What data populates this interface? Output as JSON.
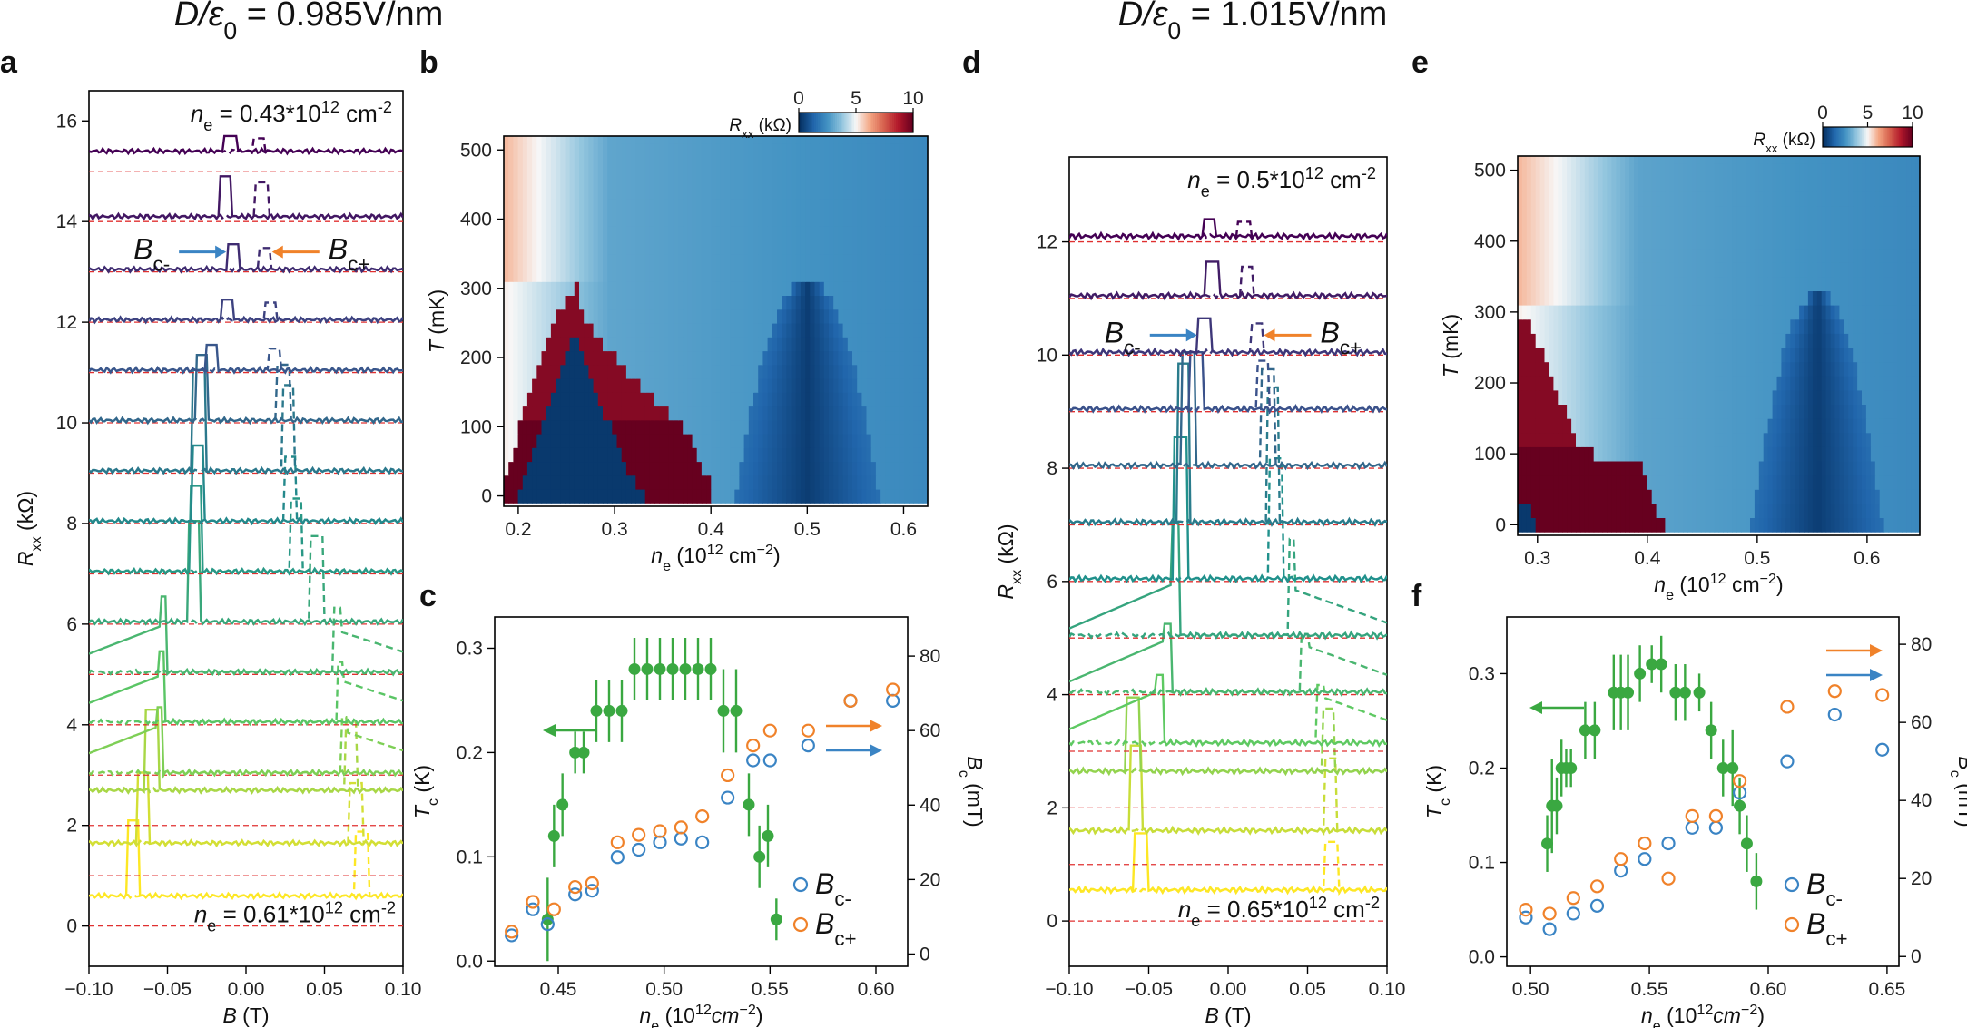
{
  "headings": {
    "left": {
      "prefix": "D/ε",
      "sub": "0",
      "value": " = 0.985V/nm"
    },
    "right": {
      "prefix": "D/ε",
      "sub": "0",
      "value": " = 1.015V/nm"
    }
  },
  "colors": {
    "blue": "#3a84c4",
    "orange": "#f0822a",
    "green": "#3aa841",
    "red_dash": "#e03030",
    "cmap": [
      "#053061",
      "#2166ac",
      "#4393c3",
      "#92c5de",
      "#f7f7f7",
      "#f4a582",
      "#d6604d",
      "#b2182b",
      "#67001f"
    ],
    "viridis": [
      "#440154",
      "#3b528b",
      "#21918c",
      "#5ec962",
      "#fde725"
    ]
  },
  "chart_data": [
    {
      "panel": "a",
      "type": "line",
      "xlabel": "B (T)",
      "ylabel_main": "R",
      "ylabel_sub": "xx",
      "ylabel_unit": " (kΩ)",
      "xlim": [
        -0.1,
        0.1
      ],
      "ylim": [
        -0.8,
        16.6
      ],
      "xticks": [
        -0.1,
        -0.05,
        0.0,
        0.05,
        0.1
      ],
      "xticklabels": [
        "−0.10",
        "−0.05",
        "0.00",
        "0.05",
        "0.10"
      ],
      "yticks": [
        0,
        2,
        4,
        6,
        8,
        10,
        12,
        14,
        16
      ],
      "offsets": [
        0,
        1,
        2,
        3,
        4,
        5,
        6,
        7,
        8,
        9,
        10,
        11,
        12,
        13,
        14,
        15
      ],
      "baseline_rel": [
        0.6,
        0.65,
        0.7,
        0.05,
        0.06,
        0.05,
        0.05,
        0.05,
        0.05,
        0.05,
        0.05,
        0.05,
        0.05,
        0.05,
        0.1,
        0.4
      ],
      "bc_minus": [
        -0.072,
        -0.066,
        -0.06,
        -0.057,
        -0.056,
        -0.055,
        -0.033,
        -0.032,
        -0.031,
        -0.03,
        -0.028,
        -0.022,
        -0.012,
        -0.008,
        -0.013,
        -0.01
      ],
      "bc_plus": [
        0.074,
        0.07,
        0.067,
        0.064,
        0.062,
        0.06,
        0.045,
        0.032,
        0.028,
        0.027,
        0.024,
        0.018,
        0.016,
        0.012,
        0.01,
        0.008
      ],
      "peak_height": [
        1.5,
        1.4,
        1.6,
        1.3,
        1.4,
        1.5,
        2.0,
        1.7,
        1.5,
        2.0,
        1.3,
        0.5,
        0.4,
        0.5,
        0.8,
        0.3
      ],
      "top_label": {
        "prefix": "n",
        "sub": "e",
        "value": " = 0.43*10",
        "sup": "12",
        "unit": " cm",
        "unit_sup": "-2"
      },
      "bottom_label": {
        "prefix": "n",
        "sub": "e",
        "value": " = 0.61*10",
        "sup": "12",
        "unit": " cm",
        "unit_sup": "-2"
      },
      "arrow_labels": {
        "minus": "B",
        "minus_sub": "c-",
        "plus": "B",
        "plus_sub": "c+"
      }
    },
    {
      "panel": "b",
      "type": "heatmap",
      "xlabel_main": "n",
      "xlabel_sub": "e",
      "xlabel_unit": " (10",
      "xlabel_sup": "12",
      "xlabel_unit2": " cm",
      "xlabel_sup2": "−2",
      "xlabel_end": ")",
      "ylabel": "T (mK)",
      "xlim": [
        0.185,
        0.625
      ],
      "ylim": [
        -15,
        520
      ],
      "xticks": [
        0.2,
        0.3,
        0.4,
        0.5,
        0.6
      ],
      "xticklabels": [
        "0.2",
        "0.3",
        "0.4",
        "0.5",
        "0.6"
      ],
      "yticks": [
        0,
        100,
        200,
        300,
        400,
        500
      ],
      "colorbar": {
        "label_main": "R",
        "label_sub": "xx",
        "label_unit": " (kΩ)",
        "ticks": [
          0,
          5,
          10
        ],
        "range": [
          0,
          10
        ]
      },
      "rows_T": [
        0,
        20,
        40,
        60,
        80,
        100,
        120,
        140,
        160,
        180,
        200,
        220,
        240,
        260,
        280,
        300,
        320,
        340,
        360,
        380,
        400,
        420,
        440,
        460,
        480,
        500,
        520
      ],
      "dome1_edges": [
        [
          0.185,
          0.4
        ],
        [
          0.185,
          0.4
        ],
        [
          0.19,
          0.39
        ],
        [
          0.195,
          0.385
        ],
        [
          0.2,
          0.38
        ],
        [
          0.2,
          0.37
        ],
        [
          0.205,
          0.355
        ],
        [
          0.21,
          0.34
        ],
        [
          0.215,
          0.325
        ],
        [
          0.22,
          0.31
        ],
        [
          0.225,
          0.3
        ],
        [
          0.23,
          0.29
        ],
        [
          0.235,
          0.28
        ],
        [
          0.24,
          0.27
        ],
        [
          0.25,
          0.265
        ],
        [
          0.26,
          0.262
        ]
      ],
      "sc_edges": [
        [
          0.2,
          0.33
        ],
        [
          0.205,
          0.32
        ],
        [
          0.21,
          0.31
        ],
        [
          0.215,
          0.305
        ],
        [
          0.22,
          0.3
        ],
        [
          0.225,
          0.295
        ],
        [
          0.23,
          0.29
        ],
        [
          0.235,
          0.285
        ],
        [
          0.24,
          0.28
        ],
        [
          0.245,
          0.275
        ],
        [
          0.25,
          0.27
        ],
        [
          0.255,
          0.265
        ]
      ],
      "dome2_center": 0.5,
      "dome2_halfwidth0": 0.075,
      "dome2_top": 320
    },
    {
      "panel": "c",
      "type": "scatter",
      "xlabel_main": "n",
      "xlabel_sub": "e",
      "xlabel_unit": " (10",
      "xlabel_sup": "12",
      "xlabel_unit2": "cm",
      "xlabel_sup2": "−2",
      "xlabel_end": ")",
      "ylabel_main": "T",
      "ylabel_sub": "c",
      "ylabel_unit": " (K)",
      "y2label_main": "B",
      "y2label_sub": "c",
      "y2label_unit": " (mT)",
      "xlim": [
        0.42,
        0.615
      ],
      "ylim": [
        -0.005,
        0.33
      ],
      "y2lim": [
        -3.3,
        90.5
      ],
      "xticks": [
        0.45,
        0.5,
        0.55,
        0.6
      ],
      "xticklabels": [
        "0.45",
        "0.50",
        "0.55",
        "0.60"
      ],
      "yticks": [
        0.0,
        0.1,
        0.2,
        0.3
      ],
      "yticklabels": [
        "0.0",
        "0.1",
        "0.2",
        "0.3"
      ],
      "y2ticks": [
        0,
        20,
        40,
        60,
        80
      ],
      "tc": {
        "name": "Tc",
        "x": [
          0.445,
          0.448,
          0.452,
          0.458,
          0.462,
          0.468,
          0.474,
          0.48,
          0.486,
          0.492,
          0.498,
          0.504,
          0.51,
          0.516,
          0.522,
          0.528,
          0.534,
          0.54,
          0.545,
          0.549,
          0.553
        ],
        "y": [
          0.04,
          0.12,
          0.15,
          0.2,
          0.2,
          0.24,
          0.24,
          0.24,
          0.28,
          0.28,
          0.28,
          0.28,
          0.28,
          0.28,
          0.28,
          0.24,
          0.24,
          0.15,
          0.1,
          0.12,
          0.04
        ],
        "err": [
          0.04,
          0.03,
          0.03,
          0.02,
          0.02,
          0.03,
          0.03,
          0.03,
          0.03,
          0.03,
          0.03,
          0.03,
          0.03,
          0.03,
          0.03,
          0.04,
          0.04,
          0.03,
          0.03,
          0.03,
          0.02
        ]
      },
      "bc_minus": {
        "name": "B",
        "sub": "c-",
        "x": [
          0.428,
          0.438,
          0.445,
          0.458,
          0.466,
          0.478,
          0.488,
          0.498,
          0.508,
          0.518,
          0.53,
          0.542,
          0.55,
          0.568,
          0.588,
          0.608
        ],
        "y": [
          5,
          12,
          8,
          16,
          17,
          26,
          28,
          30,
          31,
          30,
          42,
          52,
          52,
          56,
          68,
          68
        ]
      },
      "bc_plus": {
        "name": "B",
        "sub": "c+",
        "x": [
          0.428,
          0.438,
          0.448,
          0.458,
          0.466,
          0.478,
          0.488,
          0.498,
          0.508,
          0.518,
          0.53,
          0.542,
          0.55,
          0.568,
          0.588,
          0.608
        ],
        "y": [
          6,
          14,
          12,
          18,
          19,
          30,
          32,
          33,
          34,
          37,
          48,
          56,
          60,
          60,
          68,
          71
        ]
      }
    },
    {
      "panel": "d",
      "type": "line",
      "xlabel": "B (T)",
      "ylabel_main": "R",
      "ylabel_sub": "xx",
      "ylabel_unit": " (kΩ)",
      "xlim": [
        -0.1,
        0.1
      ],
      "ylim": [
        -0.8,
        13.5
      ],
      "xticks": [
        -0.1,
        -0.05,
        0.0,
        0.05,
        0.1
      ],
      "xticklabels": [
        "−0.10",
        "−0.05",
        "0.00",
        "0.05",
        "0.10"
      ],
      "yticks": [
        0,
        2,
        4,
        6,
        8,
        10,
        12
      ],
      "offsets": [
        0,
        1,
        2,
        3,
        4,
        5,
        6,
        7,
        8,
        9,
        10,
        11,
        12
      ],
      "baseline_rel": [
        0.55,
        0.6,
        0.65,
        0.15,
        0.05,
        0.05,
        0.05,
        0.05,
        0.05,
        0.05,
        0.05,
        0.05,
        0.1
      ],
      "bc_minus": [
        -0.055,
        -0.058,
        -0.06,
        -0.045,
        -0.04,
        -0.035,
        -0.03,
        -0.028,
        -0.025,
        -0.02,
        -0.015,
        -0.01,
        -0.012
      ],
      "bc_plus": [
        0.065,
        0.064,
        0.063,
        0.06,
        0.05,
        0.042,
        0.03,
        0.028,
        0.025,
        0.022,
        0.018,
        0.012,
        0.01
      ],
      "peak_height": [
        1.0,
        1.5,
        1.3,
        1.2,
        1.2,
        2.0,
        2.5,
        2.8,
        2.0,
        1.0,
        0.6,
        0.6,
        0.3
      ],
      "top_label": {
        "prefix": "n",
        "sub": "e",
        "value": " = 0.5*10",
        "sup": "12",
        "unit": " cm",
        "unit_sup": "-2"
      },
      "bottom_label": {
        "prefix": "n",
        "sub": "e",
        "value": " = 0.65*10",
        "sup": "12",
        "unit": " cm",
        "unit_sup": "-2"
      },
      "arrow_labels": {
        "minus": "B",
        "minus_sub": "c-",
        "plus": "B",
        "plus_sub": "c+"
      }
    },
    {
      "panel": "e",
      "type": "heatmap",
      "xlabel_main": "n",
      "xlabel_sub": "e",
      "xlabel_unit": " (10",
      "xlabel_sup": "12",
      "xlabel_unit2": " cm",
      "xlabel_sup2": "−2",
      "xlabel_end": ")",
      "ylabel": "T (mK)",
      "xlim": [
        0.282,
        0.648
      ],
      "ylim": [
        -15,
        520
      ],
      "xticks": [
        0.3,
        0.4,
        0.5,
        0.6
      ],
      "xticklabels": [
        "0.3",
        "0.4",
        "0.5",
        "0.6"
      ],
      "yticks": [
        0,
        100,
        200,
        300,
        400,
        500
      ],
      "colorbar": {
        "label_main": "R",
        "label_sub": "xx",
        "label_unit": " (kΩ)",
        "ticks": [
          0,
          5,
          10
        ],
        "range": [
          0,
          10
        ]
      },
      "rows_T": [
        0,
        20,
        40,
        60,
        80,
        100,
        120,
        140,
        160,
        180,
        200,
        220,
        240,
        260,
        280,
        300,
        320,
        340,
        360,
        380,
        400,
        420,
        440,
        460,
        480,
        500,
        520
      ],
      "dome1_edges": [
        [
          0.282,
          0.415
        ],
        [
          0.282,
          0.41
        ],
        [
          0.282,
          0.405
        ],
        [
          0.282,
          0.4
        ],
        [
          0.282,
          0.395
        ],
        [
          0.282,
          0.35
        ],
        [
          0.282,
          0.335
        ],
        [
          0.282,
          0.33
        ],
        [
          0.282,
          0.325
        ],
        [
          0.282,
          0.32
        ],
        [
          0.282,
          0.315
        ],
        [
          0.282,
          0.31
        ],
        [
          0.282,
          0.305
        ],
        [
          0.282,
          0.3
        ],
        [
          0.282,
          0.295
        ]
      ],
      "sc_edges": [
        [
          0.282,
          0.3
        ],
        [
          0.282,
          0.295
        ]
      ],
      "dome2_center": 0.555,
      "dome2_halfwidth0": 0.06,
      "dome2_top": 330
    },
    {
      "panel": "f",
      "type": "scatter",
      "xlabel_main": "n",
      "xlabel_sub": "e",
      "xlabel_unit": " (10",
      "xlabel_sup": "12",
      "xlabel_unit2": "cm",
      "xlabel_sup2": "−2",
      "xlabel_end": ")",
      "ylabel_main": "T",
      "ylabel_sub": "c",
      "ylabel_unit": " (K)",
      "y2label_main": "B",
      "y2label_sub": "c",
      "y2label_unit": " (mT)",
      "xlim": [
        0.49,
        0.655
      ],
      "ylim": [
        -0.01,
        0.36
      ],
      "y2lim": [
        -2.5,
        87
      ],
      "xticks": [
        0.5,
        0.55,
        0.6,
        0.65
      ],
      "xticklabels": [
        "0.50",
        "0.55",
        "0.60",
        "0.65"
      ],
      "yticks": [
        0.0,
        0.1,
        0.2,
        0.3
      ],
      "yticklabels": [
        "0.0",
        "0.1",
        "0.2",
        "0.3"
      ],
      "y2ticks": [
        0,
        20,
        40,
        60,
        80
      ],
      "tc": {
        "name": "Tc",
        "x": [
          0.507,
          0.509,
          0.511,
          0.513,
          0.515,
          0.517,
          0.523,
          0.527,
          0.535,
          0.538,
          0.541,
          0.546,
          0.551,
          0.555,
          0.561,
          0.565,
          0.571,
          0.576,
          0.581,
          0.585,
          0.588,
          0.591,
          0.595
        ],
        "y": [
          0.12,
          0.16,
          0.16,
          0.2,
          0.2,
          0.2,
          0.24,
          0.24,
          0.28,
          0.28,
          0.28,
          0.3,
          0.31,
          0.31,
          0.28,
          0.28,
          0.28,
          0.24,
          0.2,
          0.2,
          0.16,
          0.12,
          0.08
        ],
        "err": [
          0.03,
          0.05,
          0.03,
          0.03,
          0.02,
          0.02,
          0.03,
          0.03,
          0.04,
          0.04,
          0.04,
          0.03,
          0.02,
          0.03,
          0.03,
          0.03,
          0.02,
          0.03,
          0.03,
          0.04,
          0.03,
          0.03,
          0.03
        ]
      },
      "bc_minus": {
        "name": "B",
        "sub": "c-",
        "x": [
          0.498,
          0.508,
          0.518,
          0.528,
          0.538,
          0.548,
          0.558,
          0.568,
          0.578,
          0.588,
          0.608,
          0.628,
          0.648
        ],
        "y": [
          10,
          7,
          11,
          13,
          22,
          25,
          29,
          33,
          33,
          42,
          50,
          62,
          53
        ]
      },
      "bc_plus": {
        "name": "B",
        "sub": "c+",
        "x": [
          0.498,
          0.508,
          0.518,
          0.528,
          0.538,
          0.548,
          0.558,
          0.568,
          0.578,
          0.588,
          0.608,
          0.628,
          0.648
        ],
        "y": [
          12,
          11,
          15,
          18,
          25,
          29,
          20,
          36,
          36,
          45,
          64,
          68,
          67
        ]
      }
    }
  ]
}
